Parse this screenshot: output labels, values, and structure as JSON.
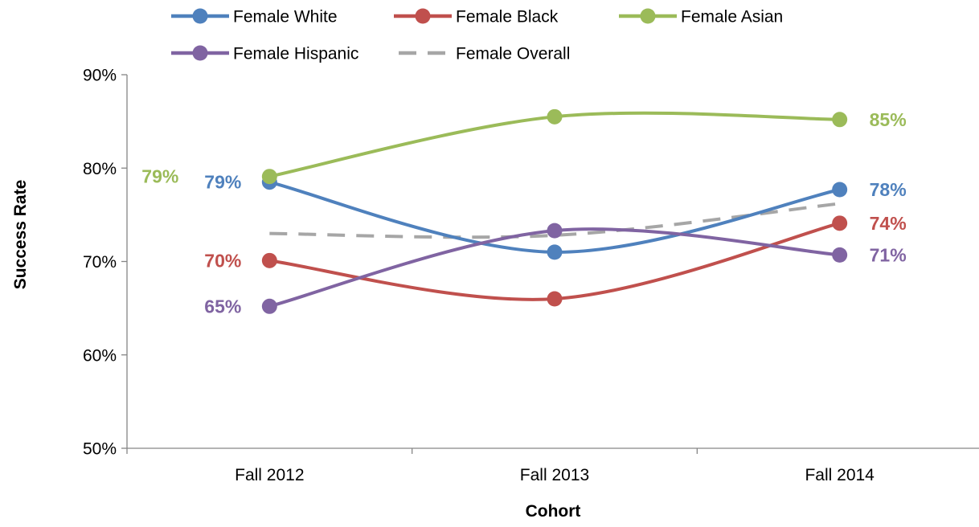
{
  "chart_data": {
    "type": "line",
    "title": "",
    "xlabel": "Cohort",
    "ylabel": "Success Rate",
    "categories": [
      "Fall 2012",
      "Fall 2013",
      "Fall 2014"
    ],
    "ylim": [
      0.5,
      0.9
    ],
    "yticks": [
      0.5,
      0.6,
      0.7,
      0.8,
      0.9
    ],
    "ytick_labels": [
      "50%",
      "60%",
      "70%",
      "80%",
      "90%"
    ],
    "grid": false,
    "legend_position": "top",
    "series": [
      {
        "name": "Female White",
        "color": "#4f81bd",
        "dashed": false,
        "markers": true,
        "values": [
          0.785,
          0.71,
          0.777
        ],
        "labels": [
          "79%",
          "",
          "78%"
        ]
      },
      {
        "name": "Female Black",
        "color": "#c0504d",
        "dashed": false,
        "markers": true,
        "values": [
          0.701,
          0.66,
          0.741
        ],
        "labels": [
          "70%",
          "",
          "74%"
        ]
      },
      {
        "name": "Female Asian",
        "color": "#9bbb59",
        "dashed": false,
        "markers": true,
        "values": [
          0.791,
          0.855,
          0.852
        ],
        "labels": [
          "79%",
          "",
          "85%"
        ]
      },
      {
        "name": "Female Hispanic",
        "color": "#8064a2",
        "dashed": false,
        "markers": true,
        "values": [
          0.652,
          0.733,
          0.707
        ],
        "labels": [
          "65%",
          "",
          "71%"
        ]
      },
      {
        "name": "Female Overall",
        "color": "#a6a6a6",
        "dashed": true,
        "markers": false,
        "values": [
          0.73,
          0.728,
          0.762
        ],
        "labels": [
          "",
          "",
          ""
        ]
      }
    ]
  }
}
